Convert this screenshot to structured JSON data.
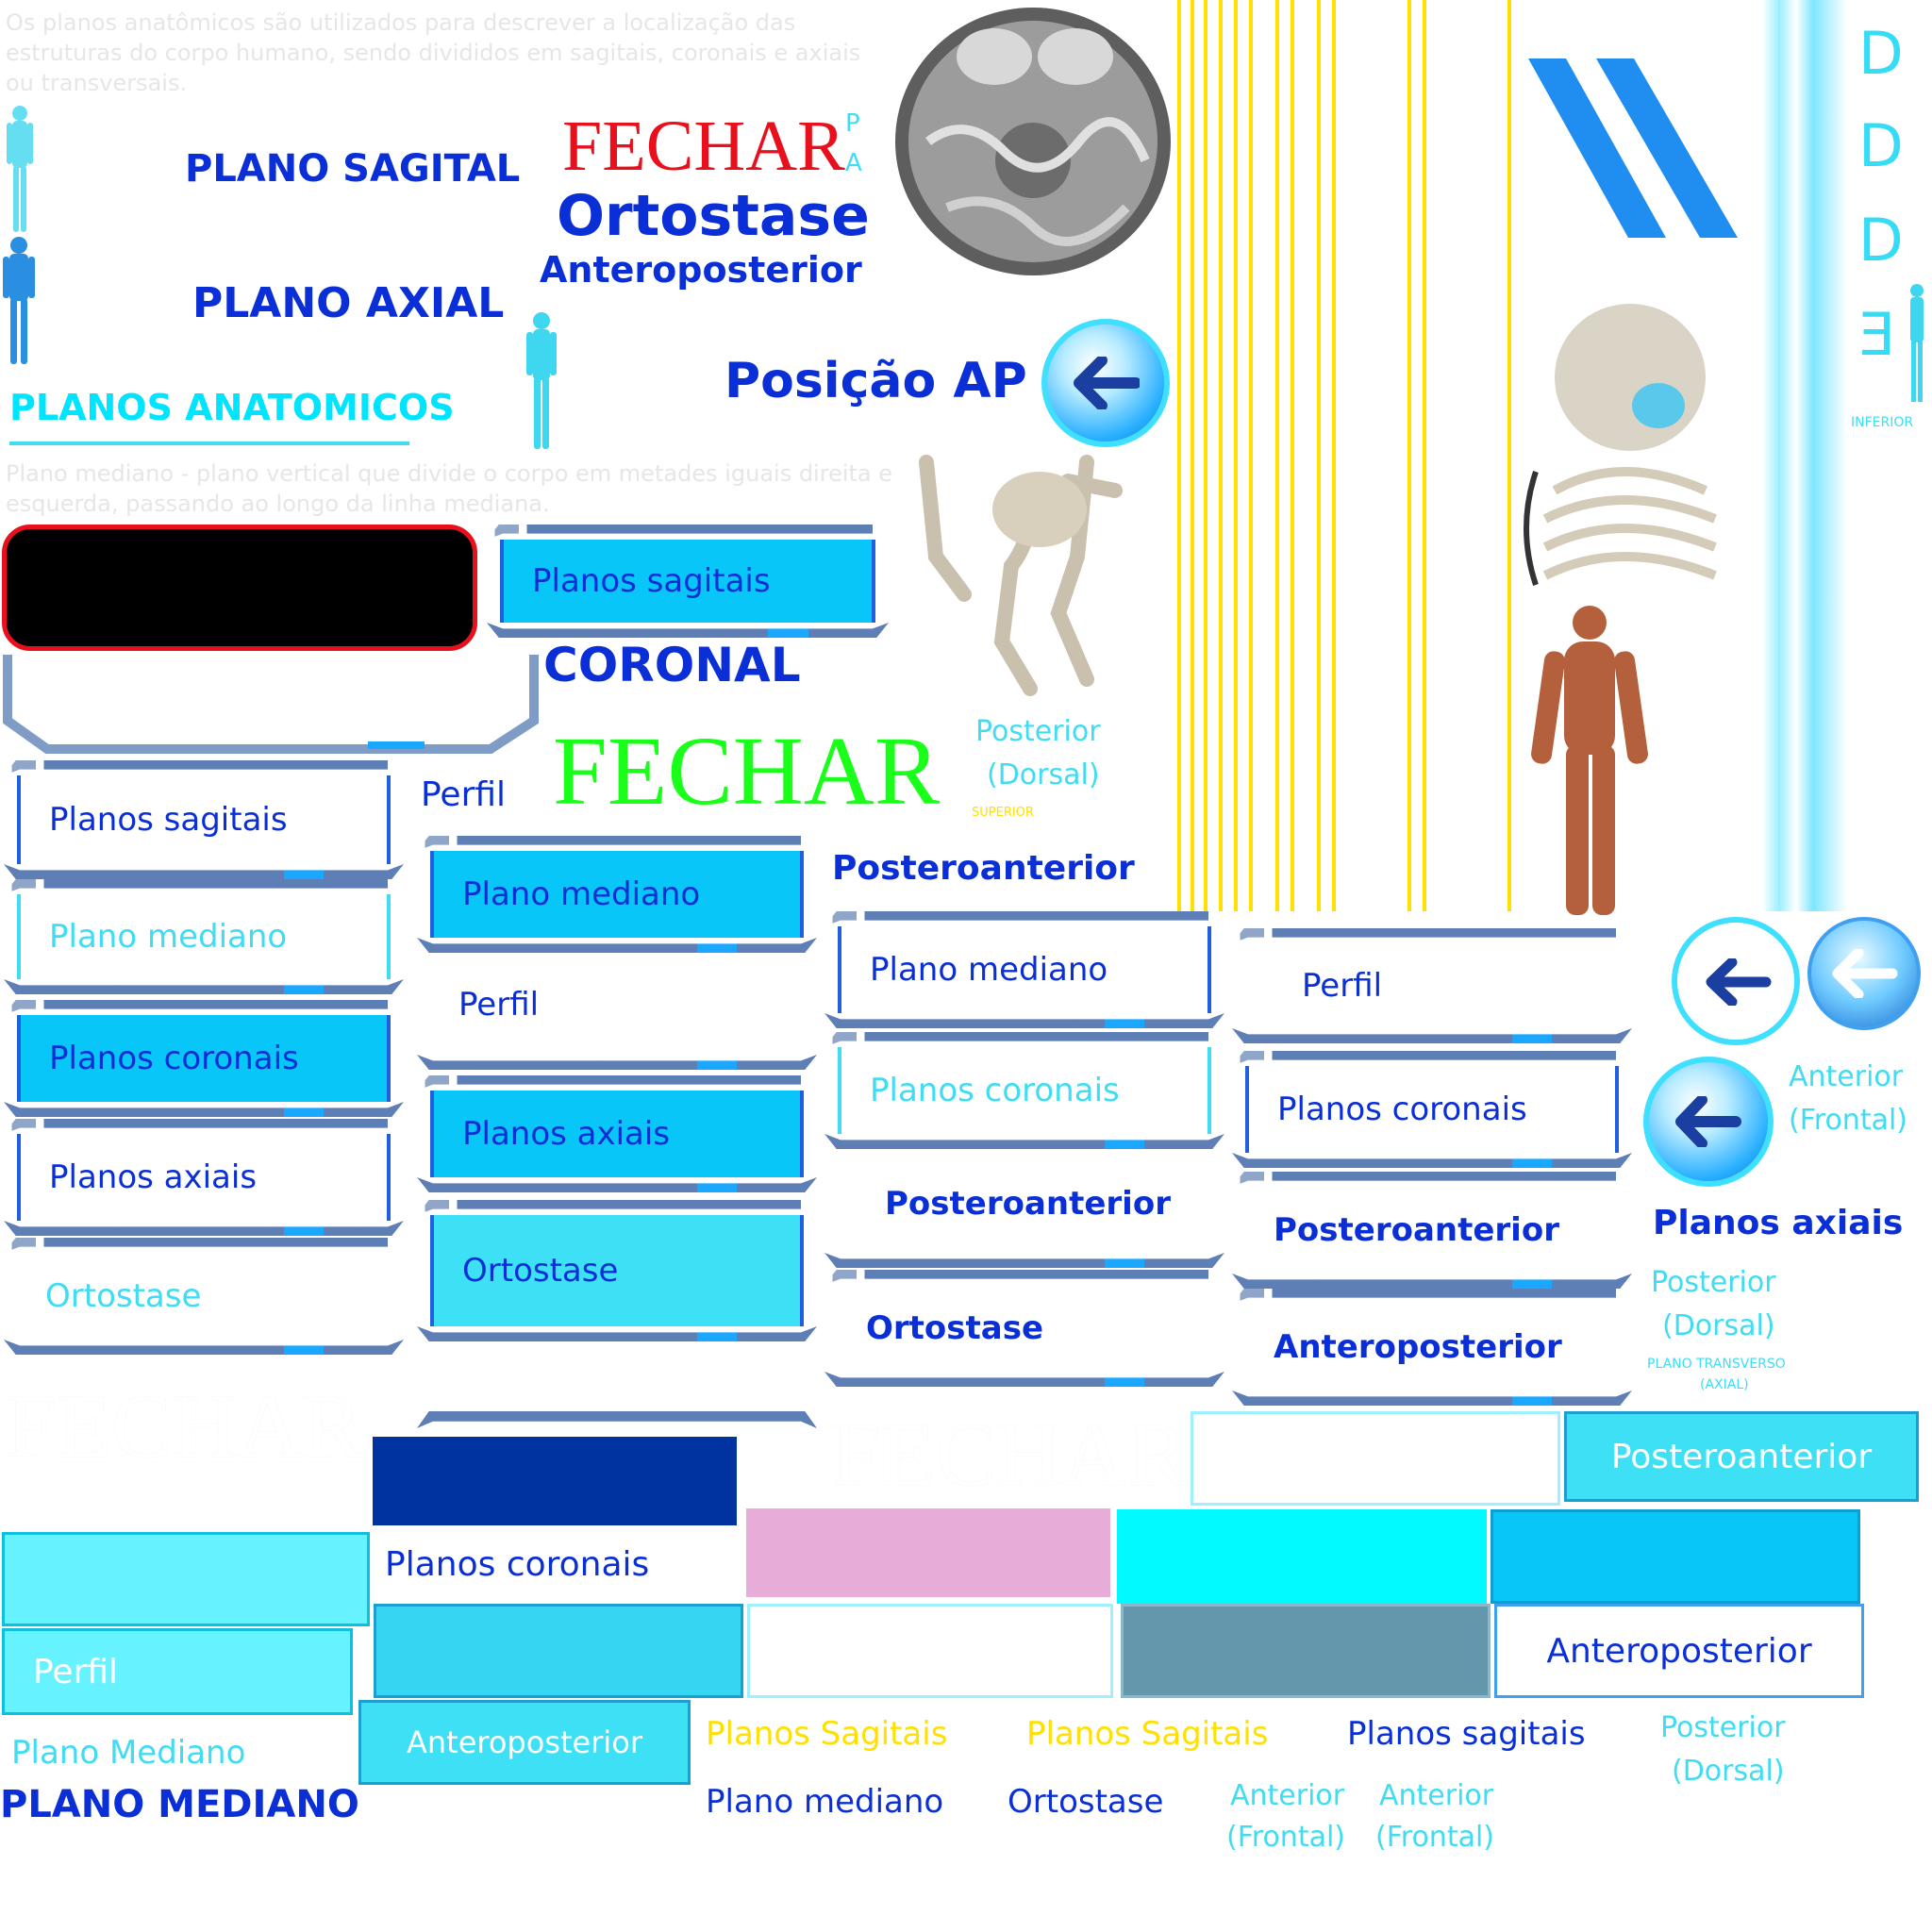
{
  "top_paragraph": "Os planos anatômicos são utilizados para descrever a localização das estruturas do corpo humano, sendo divididos em sagitais, coronais e axiais ou transversais.",
  "mid_paragraph": "Plano mediano - plano vertical que divide o corpo em metades iguais direita e esquerda, passando ao longo da linha mediana.",
  "titles": {
    "plano_sagital": "PLANO SAGITAL",
    "plano_axial": "PLANO AXIAL",
    "planos_anatomicos": "PLANOS ANATOMICOS",
    "fechar_red": "FECHAR",
    "pa_letter_p": "P",
    "pa_letter_a": "A",
    "ortostase_big": "Ortostase",
    "anteroposterior_top": "Anteroposterior",
    "posicao_ap": "Posição AP",
    "coronal": "CORONAL",
    "fechar_green": "FECHAR",
    "perfil_small": "Perfil",
    "posterior_1": "Posterior",
    "dorsal_1": "(Dorsal)",
    "superior": "SUPERIOR",
    "posteroanterior_1": "Posteroanterior",
    "fechar_white_1": "FECHAR",
    "fechar_white_2": "FECHAR",
    "inferior": "INFERIOR"
  },
  "side_letters": [
    "D",
    "D",
    "D",
    "E"
  ],
  "panels_col1": [
    {
      "label": "Planos sagitais",
      "style": "outline"
    },
    {
      "label": "Plano mediano",
      "style": "outline-cyan"
    },
    {
      "label": "Planos coronais",
      "style": "fill"
    },
    {
      "label": "Planos axiais",
      "style": "outline"
    },
    {
      "label": "Ortostase",
      "style": "plain-cyan"
    }
  ],
  "panels_col2": [
    {
      "label": "Planos sagitais",
      "style": "fill"
    },
    {
      "label": "Plano mediano",
      "style": "fill"
    },
    {
      "label": "Perfil",
      "style": "plain"
    },
    {
      "label": "Planos axiais",
      "style": "fill"
    },
    {
      "label": "Ortostase",
      "style": "fill2"
    }
  ],
  "panels_col3": [
    {
      "label": "Plano mediano",
      "style": "outline"
    },
    {
      "label": "Planos coronais",
      "style": "outline-cyan"
    },
    {
      "label": "Posteroanterior",
      "style": "plain"
    },
    {
      "label": "Ortostase",
      "style": "plain"
    }
  ],
  "panels_col4": [
    {
      "label": "Perfil",
      "style": "plain"
    },
    {
      "label": "Planos coronais",
      "style": "outline"
    },
    {
      "label": "Posteroanterior",
      "style": "plain"
    },
    {
      "label": "Anteroposterior",
      "style": "plain"
    }
  ],
  "right_col": {
    "anterior": "Anterior",
    "frontal": "(Frontal)",
    "planos_axiais": "Planos axiais",
    "posterior": "Posterior",
    "dorsal": "(Dorsal)",
    "plano_transverso": "PLANO TRANSVERSO",
    "axial": "(AXIAL)"
  },
  "bottom": {
    "posteroanterior_box": "Posteroanterior",
    "planos_coronais": "Planos coronais",
    "perfil_box": "Perfil",
    "anteroposterior_box1": "Anteroposterior",
    "anteroposterior_box2": "Anteroposterior",
    "plano_mediano_cyan": "Plano Mediano",
    "plano_mediano_caps": "PLANO MEDIANO",
    "planos_sagitais_y1": "Planos Sagitais",
    "planos_sagitais_y2": "Planos Sagitais",
    "planos_sagitais_b": "Planos sagitais",
    "posterior_b": "Posterior",
    "dorsal_b": "(Dorsal)",
    "plano_mediano_b": "Plano mediano",
    "ortostase_b": "Ortostase",
    "anterior_b1": "Anterior",
    "frontal_b1": "(Frontal)",
    "anterior_b2": "Anterior",
    "frontal_b2": "(Frontal)"
  },
  "colors": {
    "accent_blue": "#0a2fd6",
    "cyan": "#00e5ff",
    "fill_blue": "#09c6f9",
    "red": "#e8101c",
    "green": "#1aff1a",
    "yellow": "#ffe000",
    "navy": "#0033a0",
    "pink": "#e8acd8",
    "slate": "#6496ac"
  }
}
